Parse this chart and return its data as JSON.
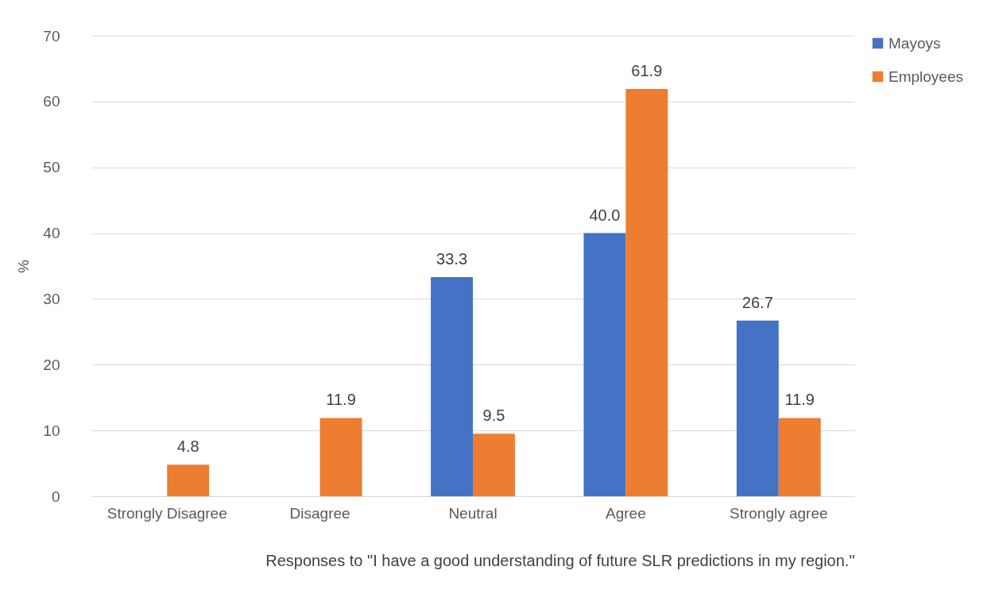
{
  "chart_data": {
    "type": "bar",
    "xlabel": "Responses to \"I have a good understanding of future SLR predictions in my region.\"",
    "ylabel": "%",
    "categories": [
      "Strongly Disagree",
      "Disagree",
      "Neutral",
      "Agree",
      "Strongly agree"
    ],
    "series": [
      {
        "name": "Mayoys",
        "color": "#4472c4",
        "values": [
          null,
          null,
          33.3,
          40.0,
          26.7
        ],
        "value_labels": [
          null,
          null,
          "33.3",
          "40.0",
          "26.7"
        ]
      },
      {
        "name": "Employees",
        "color": "#ed7d31",
        "values": [
          4.8,
          11.9,
          9.5,
          61.9,
          11.9
        ],
        "value_labels": [
          "4.8",
          "11.9",
          "9.5",
          "61.9",
          "11.9"
        ]
      }
    ],
    "ylim": [
      0,
      70
    ],
    "yticks": [
      0,
      10,
      20,
      30,
      40,
      50,
      60,
      70
    ],
    "grid": "y",
    "legend": "right"
  }
}
